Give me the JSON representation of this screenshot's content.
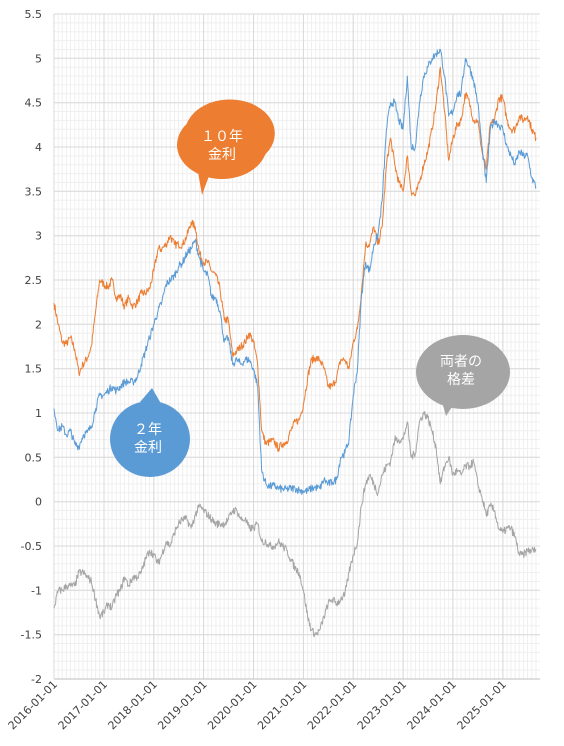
{
  "chart_data": {
    "type": "line",
    "title": "",
    "xlabel": "",
    "ylabel": "",
    "ylim": [
      -2,
      5.5
    ],
    "xlim": [
      "2016-01-01",
      "2025-09-30"
    ],
    "grid": true,
    "y_ticks": [
      "5.5",
      "5",
      "4.5",
      "4",
      "3.5",
      "3",
      "2.5",
      "2",
      "1.5",
      "1",
      "0.5",
      "0",
      "-0.5",
      "-1",
      "-1.5",
      "-2"
    ],
    "x_ticks": [
      "2016-01-01",
      "2017-01-01",
      "2018-01-01",
      "2019-01-01",
      "2020-01-01",
      "2021-01-01",
      "2022-01-01",
      "2023-01-01",
      "2024-01-01",
      "2025-01-01"
    ],
    "colors": {
      "ten_year": "#ED7D31",
      "two_year": "#5B9BD5",
      "spread": "#A5A5A5"
    },
    "callouts": [
      {
        "series": "ten_year",
        "lines": [
          "１０年",
          "金利"
        ],
        "color": "#ED7D31"
      },
      {
        "series": "two_year",
        "lines": [
          "２年",
          "金利"
        ],
        "color": "#5B9BD5"
      },
      {
        "series": "spread",
        "lines": [
          "両者の",
          "格差"
        ],
        "color": "#A5A5A5"
      }
    ],
    "series": [
      {
        "key": "ten_year",
        "x": [
          "2016-01-01",
          "2016-02-01",
          "2016-03-01",
          "2016-04-01",
          "2016-05-01",
          "2016-06-01",
          "2016-07-01",
          "2016-08-01",
          "2016-09-01",
          "2016-10-01",
          "2016-11-01",
          "2016-12-01",
          "2017-01-01",
          "2017-02-01",
          "2017-03-01",
          "2017-04-01",
          "2017-05-01",
          "2017-06-01",
          "2017-07-01",
          "2017-08-01",
          "2017-09-01",
          "2017-10-01",
          "2017-11-01",
          "2017-12-01",
          "2018-01-01",
          "2018-02-01",
          "2018-03-01",
          "2018-04-01",
          "2018-05-01",
          "2018-06-01",
          "2018-07-01",
          "2018-08-01",
          "2018-09-01",
          "2018-10-01",
          "2018-11-01",
          "2018-12-01",
          "2019-01-01",
          "2019-02-01",
          "2019-03-01",
          "2019-04-01",
          "2019-05-01",
          "2019-06-01",
          "2019-07-01",
          "2019-08-01",
          "2019-09-01",
          "2019-10-01",
          "2019-11-01",
          "2019-12-01",
          "2020-01-01",
          "2020-02-01",
          "2020-03-01",
          "2020-04-01",
          "2020-05-01",
          "2020-06-01",
          "2020-07-01",
          "2020-08-01",
          "2020-09-01",
          "2020-10-01",
          "2020-11-01",
          "2020-12-01",
          "2021-01-01",
          "2021-02-01",
          "2021-03-01",
          "2021-04-01",
          "2021-05-01",
          "2021-06-01",
          "2021-07-01",
          "2021-08-01",
          "2021-09-01",
          "2021-10-01",
          "2021-11-01",
          "2021-12-01",
          "2022-01-01",
          "2022-02-01",
          "2022-03-01",
          "2022-04-01",
          "2022-05-01",
          "2022-06-01",
          "2022-07-01",
          "2022-08-01",
          "2022-09-01",
          "2022-10-01",
          "2022-11-01",
          "2022-12-01",
          "2023-01-01",
          "2023-02-01",
          "2023-03-01",
          "2023-04-01",
          "2023-05-01",
          "2023-06-01",
          "2023-07-01",
          "2023-08-01",
          "2023-09-01",
          "2023-10-01",
          "2023-11-01",
          "2023-12-01",
          "2024-01-01",
          "2024-02-01",
          "2024-03-01",
          "2024-04-01",
          "2024-05-01",
          "2024-06-01",
          "2024-07-01",
          "2024-08-01",
          "2024-09-01",
          "2024-10-01",
          "2024-11-01",
          "2024-12-01",
          "2025-01-01",
          "2025-02-01",
          "2025-03-01",
          "2025-04-01",
          "2025-05-01",
          "2025-06-01",
          "2025-07-01",
          "2025-08-01",
          "2025-09-01"
        ],
        "y": [
          2.24,
          2.0,
          1.8,
          1.78,
          1.85,
          1.72,
          1.45,
          1.55,
          1.62,
          1.75,
          2.15,
          2.5,
          2.45,
          2.42,
          2.5,
          2.3,
          2.32,
          2.2,
          2.3,
          2.2,
          2.25,
          2.35,
          2.35,
          2.4,
          2.6,
          2.85,
          2.85,
          2.9,
          3.0,
          2.9,
          2.9,
          2.9,
          3.0,
          3.15,
          3.1,
          2.8,
          2.7,
          2.7,
          2.6,
          2.55,
          2.4,
          2.05,
          2.05,
          1.65,
          1.7,
          1.75,
          1.8,
          1.9,
          1.8,
          1.55,
          0.8,
          0.65,
          0.68,
          0.68,
          0.6,
          0.65,
          0.68,
          0.8,
          0.9,
          0.92,
          1.1,
          1.4,
          1.6,
          1.62,
          1.6,
          1.5,
          1.3,
          1.3,
          1.4,
          1.6,
          1.6,
          1.5,
          1.8,
          1.95,
          2.35,
          2.9,
          2.9,
          3.1,
          2.9,
          3.1,
          3.8,
          4.1,
          3.8,
          3.6,
          3.5,
          3.9,
          3.5,
          3.45,
          3.6,
          3.8,
          3.95,
          4.2,
          4.5,
          4.9,
          4.4,
          3.85,
          4.1,
          4.25,
          4.3,
          4.6,
          4.5,
          4.3,
          4.3,
          3.95,
          3.75,
          4.25,
          4.3,
          4.55,
          4.55,
          4.3,
          4.2,
          4.2,
          4.35,
          4.3,
          4.35,
          4.2,
          4.1
        ]
      },
      {
        "key": "two_year",
        "x": [
          "2016-01-01",
          "2016-02-01",
          "2016-03-01",
          "2016-04-01",
          "2016-05-01",
          "2016-06-01",
          "2016-07-01",
          "2016-08-01",
          "2016-09-01",
          "2016-10-01",
          "2016-11-01",
          "2016-12-01",
          "2017-01-01",
          "2017-02-01",
          "2017-03-01",
          "2017-04-01",
          "2017-05-01",
          "2017-06-01",
          "2017-07-01",
          "2017-08-01",
          "2017-09-01",
          "2017-10-01",
          "2017-11-01",
          "2017-12-01",
          "2018-01-01",
          "2018-02-01",
          "2018-03-01",
          "2018-04-01",
          "2018-05-01",
          "2018-06-01",
          "2018-07-01",
          "2018-08-01",
          "2018-09-01",
          "2018-10-01",
          "2018-11-01",
          "2018-12-01",
          "2019-01-01",
          "2019-02-01",
          "2019-03-01",
          "2019-04-01",
          "2019-05-01",
          "2019-06-01",
          "2019-07-01",
          "2019-08-01",
          "2019-09-01",
          "2019-10-01",
          "2019-11-01",
          "2019-12-01",
          "2020-01-01",
          "2020-02-01",
          "2020-03-01",
          "2020-04-01",
          "2020-05-01",
          "2020-06-01",
          "2020-07-01",
          "2020-08-01",
          "2020-09-01",
          "2020-10-01",
          "2020-11-01",
          "2020-12-01",
          "2021-01-01",
          "2021-02-01",
          "2021-03-01",
          "2021-04-01",
          "2021-05-01",
          "2021-06-01",
          "2021-07-01",
          "2021-08-01",
          "2021-09-01",
          "2021-10-01",
          "2021-11-01",
          "2021-12-01",
          "2022-01-01",
          "2022-02-01",
          "2022-03-01",
          "2022-04-01",
          "2022-05-01",
          "2022-06-01",
          "2022-07-01",
          "2022-08-01",
          "2022-09-01",
          "2022-10-01",
          "2022-11-01",
          "2022-12-01",
          "2023-01-01",
          "2023-02-01",
          "2023-03-01",
          "2023-04-01",
          "2023-05-01",
          "2023-06-01",
          "2023-07-01",
          "2023-08-01",
          "2023-09-01",
          "2023-10-01",
          "2023-11-01",
          "2023-12-01",
          "2024-01-01",
          "2024-02-01",
          "2024-03-01",
          "2024-04-01",
          "2024-05-01",
          "2024-06-01",
          "2024-07-01",
          "2024-08-01",
          "2024-09-01",
          "2024-10-01",
          "2024-11-01",
          "2024-12-01",
          "2025-01-01",
          "2025-02-01",
          "2025-03-01",
          "2025-04-01",
          "2025-05-01",
          "2025-06-01",
          "2025-07-01",
          "2025-08-01",
          "2025-09-01"
        ],
        "y": [
          1.05,
          0.8,
          0.85,
          0.75,
          0.8,
          0.65,
          0.62,
          0.75,
          0.78,
          0.85,
          1.05,
          1.2,
          1.2,
          1.25,
          1.3,
          1.25,
          1.3,
          1.35,
          1.35,
          1.35,
          1.4,
          1.55,
          1.7,
          1.85,
          2.0,
          2.15,
          2.25,
          2.45,
          2.5,
          2.55,
          2.65,
          2.7,
          2.8,
          2.85,
          2.95,
          2.75,
          2.6,
          2.55,
          2.3,
          2.3,
          2.15,
          1.8,
          1.85,
          1.55,
          1.6,
          1.55,
          1.6,
          1.6,
          1.5,
          1.3,
          0.35,
          0.2,
          0.17,
          0.18,
          0.15,
          0.14,
          0.14,
          0.15,
          0.15,
          0.13,
          0.12,
          0.12,
          0.15,
          0.16,
          0.15,
          0.25,
          0.2,
          0.22,
          0.25,
          0.5,
          0.55,
          0.7,
          1.2,
          1.5,
          2.3,
          2.7,
          2.6,
          2.9,
          3.0,
          3.4,
          4.2,
          4.5,
          4.5,
          4.3,
          4.2,
          4.8,
          4.0,
          4.0,
          4.5,
          4.8,
          4.9,
          5.0,
          5.05,
          5.1,
          4.8,
          4.35,
          4.4,
          4.6,
          4.6,
          5.0,
          4.9,
          4.75,
          4.5,
          4.0,
          3.6,
          4.2,
          4.3,
          4.25,
          4.2,
          4.0,
          3.9,
          3.8,
          3.95,
          3.9,
          3.9,
          3.65,
          3.55
        ]
      },
      {
        "key": "spread",
        "x": [
          "2016-01-01",
          "2016-02-01",
          "2016-03-01",
          "2016-04-01",
          "2016-05-01",
          "2016-06-01",
          "2016-07-01",
          "2016-08-01",
          "2016-09-01",
          "2016-10-01",
          "2016-11-01",
          "2016-12-01",
          "2017-01-01",
          "2017-02-01",
          "2017-03-01",
          "2017-04-01",
          "2017-05-01",
          "2017-06-01",
          "2017-07-01",
          "2017-08-01",
          "2017-09-01",
          "2017-10-01",
          "2017-11-01",
          "2017-12-01",
          "2018-01-01",
          "2018-02-01",
          "2018-03-01",
          "2018-04-01",
          "2018-05-01",
          "2018-06-01",
          "2018-07-01",
          "2018-08-01",
          "2018-09-01",
          "2018-10-01",
          "2018-11-01",
          "2018-12-01",
          "2019-01-01",
          "2019-02-01",
          "2019-03-01",
          "2019-04-01",
          "2019-05-01",
          "2019-06-01",
          "2019-07-01",
          "2019-08-01",
          "2019-09-01",
          "2019-10-01",
          "2019-11-01",
          "2019-12-01",
          "2020-01-01",
          "2020-02-01",
          "2020-03-01",
          "2020-04-01",
          "2020-05-01",
          "2020-06-01",
          "2020-07-01",
          "2020-08-01",
          "2020-09-01",
          "2020-10-01",
          "2020-11-01",
          "2020-12-01",
          "2021-01-01",
          "2021-02-01",
          "2021-03-01",
          "2021-04-01",
          "2021-05-01",
          "2021-06-01",
          "2021-07-01",
          "2021-08-01",
          "2021-09-01",
          "2021-10-01",
          "2021-11-01",
          "2021-12-01",
          "2022-01-01",
          "2022-02-01",
          "2022-03-01",
          "2022-04-01",
          "2022-05-01",
          "2022-06-01",
          "2022-07-01",
          "2022-08-01",
          "2022-09-01",
          "2022-10-01",
          "2022-11-01",
          "2022-12-01",
          "2023-01-01",
          "2023-02-01",
          "2023-03-01",
          "2023-04-01",
          "2023-05-01",
          "2023-06-01",
          "2023-07-01",
          "2023-08-01",
          "2023-09-01",
          "2023-10-01",
          "2023-11-01",
          "2023-12-01",
          "2024-01-01",
          "2024-02-01",
          "2024-03-01",
          "2024-04-01",
          "2024-05-01",
          "2024-06-01",
          "2024-07-01",
          "2024-08-01",
          "2024-09-01",
          "2024-10-01",
          "2024-11-01",
          "2024-12-01",
          "2025-01-01",
          "2025-02-01",
          "2025-03-01",
          "2025-04-01",
          "2025-05-01",
          "2025-06-01",
          "2025-07-01",
          "2025-08-01",
          "2025-09-01"
        ],
        "y": [
          -1.2,
          -1.0,
          -1.0,
          -0.95,
          -0.95,
          -0.95,
          -0.8,
          -0.8,
          -0.85,
          -0.9,
          -1.1,
          -1.3,
          -1.25,
          -1.15,
          -1.2,
          -1.05,
          -1.0,
          -0.85,
          -0.95,
          -0.85,
          -0.85,
          -0.8,
          -0.65,
          -0.55,
          -0.6,
          -0.7,
          -0.6,
          -0.45,
          -0.5,
          -0.35,
          -0.25,
          -0.2,
          -0.2,
          -0.3,
          -0.15,
          -0.05,
          -0.1,
          -0.15,
          -0.2,
          -0.25,
          -0.25,
          -0.25,
          -0.2,
          -0.1,
          -0.1,
          -0.2,
          -0.2,
          -0.3,
          -0.3,
          -0.25,
          -0.45,
          -0.45,
          -0.5,
          -0.5,
          -0.45,
          -0.5,
          -0.55,
          -0.65,
          -0.75,
          -0.8,
          -1.0,
          -1.3,
          -1.45,
          -1.5,
          -1.45,
          -1.3,
          -1.15,
          -1.1,
          -1.15,
          -1.1,
          -1.05,
          -0.8,
          -0.6,
          -0.45,
          -0.05,
          0.2,
          0.3,
          0.2,
          0.1,
          0.3,
          0.4,
          0.45,
          0.7,
          0.7,
          0.7,
          0.9,
          0.5,
          0.55,
          0.9,
          1.0,
          0.95,
          0.8,
          0.6,
          0.2,
          0.4,
          0.5,
          0.3,
          0.35,
          0.3,
          0.4,
          0.4,
          0.45,
          0.2,
          0.05,
          -0.15,
          -0.05,
          -0.1,
          -0.3,
          -0.35,
          -0.3,
          -0.3,
          -0.4,
          -0.6,
          -0.6,
          -0.55,
          -0.55,
          -0.55
        ]
      }
    ]
  }
}
